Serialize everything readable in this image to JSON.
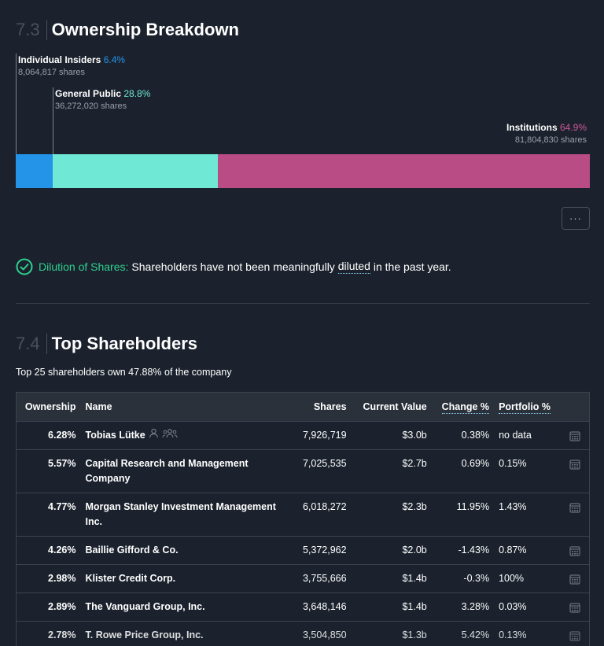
{
  "ownership": {
    "section_number": "7.3",
    "title": "Ownership Breakdown",
    "segments": [
      {
        "name": "Individual Insiders",
        "percent_label": "6.4%",
        "percent": 6.4,
        "shares": "8,064,817 shares",
        "color": "#2394e8"
      },
      {
        "name": "General Public",
        "percent_label": "28.8%",
        "percent": 28.8,
        "shares": "36,272,020 shares",
        "color": "#6fe8d6"
      },
      {
        "name": "Institutions",
        "percent_label": "64.9%",
        "percent": 64.9,
        "shares": "81,804,830 shares",
        "color": "#b94b85"
      }
    ],
    "more_label": "···"
  },
  "dilution": {
    "label": "Dilution of Shares:",
    "text_before": "Shareholders have not been meaningfully",
    "link": "diluted",
    "text_after": "in the past year."
  },
  "top_shareholders": {
    "section_number": "7.4",
    "title": "Top Shareholders",
    "summary": "Top 25 shareholders own 47.88% of the company",
    "columns": {
      "ownership": "Ownership",
      "name": "Name",
      "shares": "Shares",
      "current_value": "Current Value",
      "change": "Change %",
      "portfolio": "Portfolio %"
    },
    "rows": [
      {
        "ownership": "6.28%",
        "name": "Tobias Lütke",
        "shares": "7,926,719",
        "value": "$3.0b",
        "change": "0.38%",
        "change_dir": "pos",
        "portfolio": "no data",
        "person": true
      },
      {
        "ownership": "5.57%",
        "name": "Capital Research and Management Company",
        "shares": "7,025,535",
        "value": "$2.7b",
        "change": "0.69%",
        "change_dir": "pos",
        "portfolio": "0.15%"
      },
      {
        "ownership": "4.77%",
        "name": "Morgan Stanley Investment Management Inc.",
        "shares": "6,018,272",
        "value": "$2.3b",
        "change": "11.95%",
        "change_dir": "pos",
        "portfolio": "1.43%"
      },
      {
        "ownership": "4.26%",
        "name": "Baillie Gifford & Co.",
        "shares": "5,372,962",
        "value": "$2.0b",
        "change": "-1.43%",
        "change_dir": "neg",
        "portfolio": "0.87%"
      },
      {
        "ownership": "2.98%",
        "name": "Klister Credit Corp.",
        "shares": "3,755,666",
        "value": "$1.4b",
        "change": "-0.3%",
        "change_dir": "neg",
        "portfolio": "100%"
      },
      {
        "ownership": "2.89%",
        "name": "The Vanguard Group, Inc.",
        "shares": "3,648,146",
        "value": "$1.4b",
        "change": "3.28%",
        "change_dir": "pos",
        "portfolio": "0.03%"
      },
      {
        "ownership": "2.78%",
        "name": "T. Rowe Price Group, Inc.",
        "shares": "3,504,850",
        "value": "$1.3b",
        "change": "5.42%",
        "change_dir": "pos",
        "portfolio": "0.13%"
      }
    ]
  }
}
